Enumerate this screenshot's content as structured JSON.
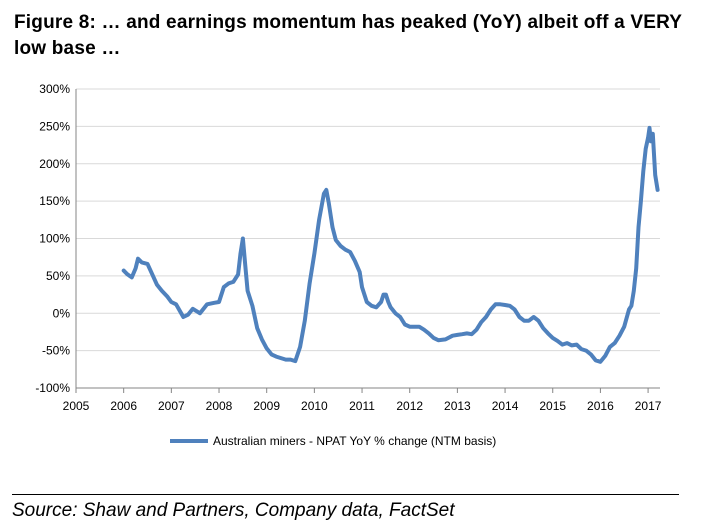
{
  "title": "Figure  8: … and earnings momentum has peaked (YoY) albeit off a VERY low base …",
  "source": "Source: Shaw and Partners, Company data, FactSet",
  "chart_data": {
    "type": "line",
    "title": "",
    "xlabel": "",
    "ylabel": "",
    "xlim": [
      2005,
      2017.25
    ],
    "ylim": [
      -100,
      300
    ],
    "grid": true,
    "legend_position": "bottom",
    "x_ticks": [
      "2005",
      "2006",
      "2007",
      "2008",
      "2009",
      "2010",
      "2011",
      "2012",
      "2013",
      "2014",
      "2015",
      "2016",
      "2017"
    ],
    "y_ticks": [
      "-100%",
      "-50%",
      "0%",
      "50%",
      "100%",
      "150%",
      "200%",
      "250%",
      "300%"
    ],
    "series": [
      {
        "name": "Australian miners - NPAT YoY % change (NTM basis)",
        "color": "#4f81bd",
        "x": [
          2006.0,
          2006.08,
          2006.17,
          2006.25,
          2006.3,
          2006.38,
          2006.5,
          2006.6,
          2006.7,
          2006.8,
          2006.92,
          2007.0,
          2007.1,
          2007.18,
          2007.25,
          2007.35,
          2007.45,
          2007.6,
          2007.75,
          2007.9,
          2008.0,
          2008.1,
          2008.2,
          2008.3,
          2008.4,
          2008.45,
          2008.5,
          2008.55,
          2008.6,
          2008.7,
          2008.8,
          2008.9,
          2009.0,
          2009.1,
          2009.2,
          2009.3,
          2009.4,
          2009.5,
          2009.6,
          2009.7,
          2009.8,
          2009.9,
          2010.0,
          2010.1,
          2010.2,
          2010.25,
          2010.3,
          2010.38,
          2010.45,
          2010.55,
          2010.65,
          2010.75,
          2010.85,
          2010.95,
          2011.0,
          2011.1,
          2011.2,
          2011.3,
          2011.4,
          2011.45,
          2011.5,
          2011.55,
          2011.6,
          2011.7,
          2011.8,
          2011.9,
          2012.0,
          2012.1,
          2012.2,
          2012.3,
          2012.4,
          2012.5,
          2012.6,
          2012.75,
          2012.9,
          2013.0,
          2013.1,
          2013.2,
          2013.3,
          2013.4,
          2013.5,
          2013.6,
          2013.7,
          2013.8,
          2013.9,
          2014.0,
          2014.1,
          2014.2,
          2014.3,
          2014.4,
          2014.5,
          2014.6,
          2014.7,
          2014.8,
          2014.9,
          2015.0,
          2015.1,
          2015.2,
          2015.3,
          2015.4,
          2015.5,
          2015.6,
          2015.7,
          2015.8,
          2015.9,
          2016.0,
          2016.1,
          2016.2,
          2016.3,
          2016.4,
          2016.5,
          2016.6,
          2016.65,
          2016.7,
          2016.75,
          2016.8,
          2016.85,
          2016.9,
          2016.95,
          2017.0,
          2017.03,
          2017.06,
          2017.1,
          2017.15,
          2017.2
        ],
        "values": [
          57,
          52,
          48,
          60,
          73,
          68,
          66,
          52,
          38,
          30,
          22,
          15,
          12,
          3,
          -5,
          -2,
          6,
          0,
          12,
          14,
          15,
          35,
          40,
          42,
          52,
          80,
          100,
          65,
          30,
          10,
          -20,
          -35,
          -47,
          -55,
          -58,
          -60,
          -62,
          -62,
          -64,
          -45,
          -10,
          40,
          80,
          125,
          160,
          165,
          148,
          115,
          98,
          90,
          85,
          82,
          70,
          55,
          35,
          15,
          10,
          8,
          15,
          25,
          25,
          15,
          8,
          0,
          -5,
          -15,
          -18,
          -18,
          -18,
          -22,
          -27,
          -33,
          -36,
          -35,
          -30,
          -29,
          -28,
          -27,
          -28,
          -22,
          -12,
          -5,
          5,
          12,
          12,
          11,
          10,
          5,
          -5,
          -10,
          -10,
          -5,
          -10,
          -20,
          -27,
          -33,
          -37,
          -42,
          -40,
          -43,
          -42,
          -48,
          -50,
          -55,
          -63,
          -65,
          -57,
          -45,
          -40,
          -30,
          -18,
          5,
          10,
          30,
          60,
          115,
          150,
          190,
          220,
          235,
          248,
          230,
          240,
          185,
          165
        ]
      }
    ]
  }
}
